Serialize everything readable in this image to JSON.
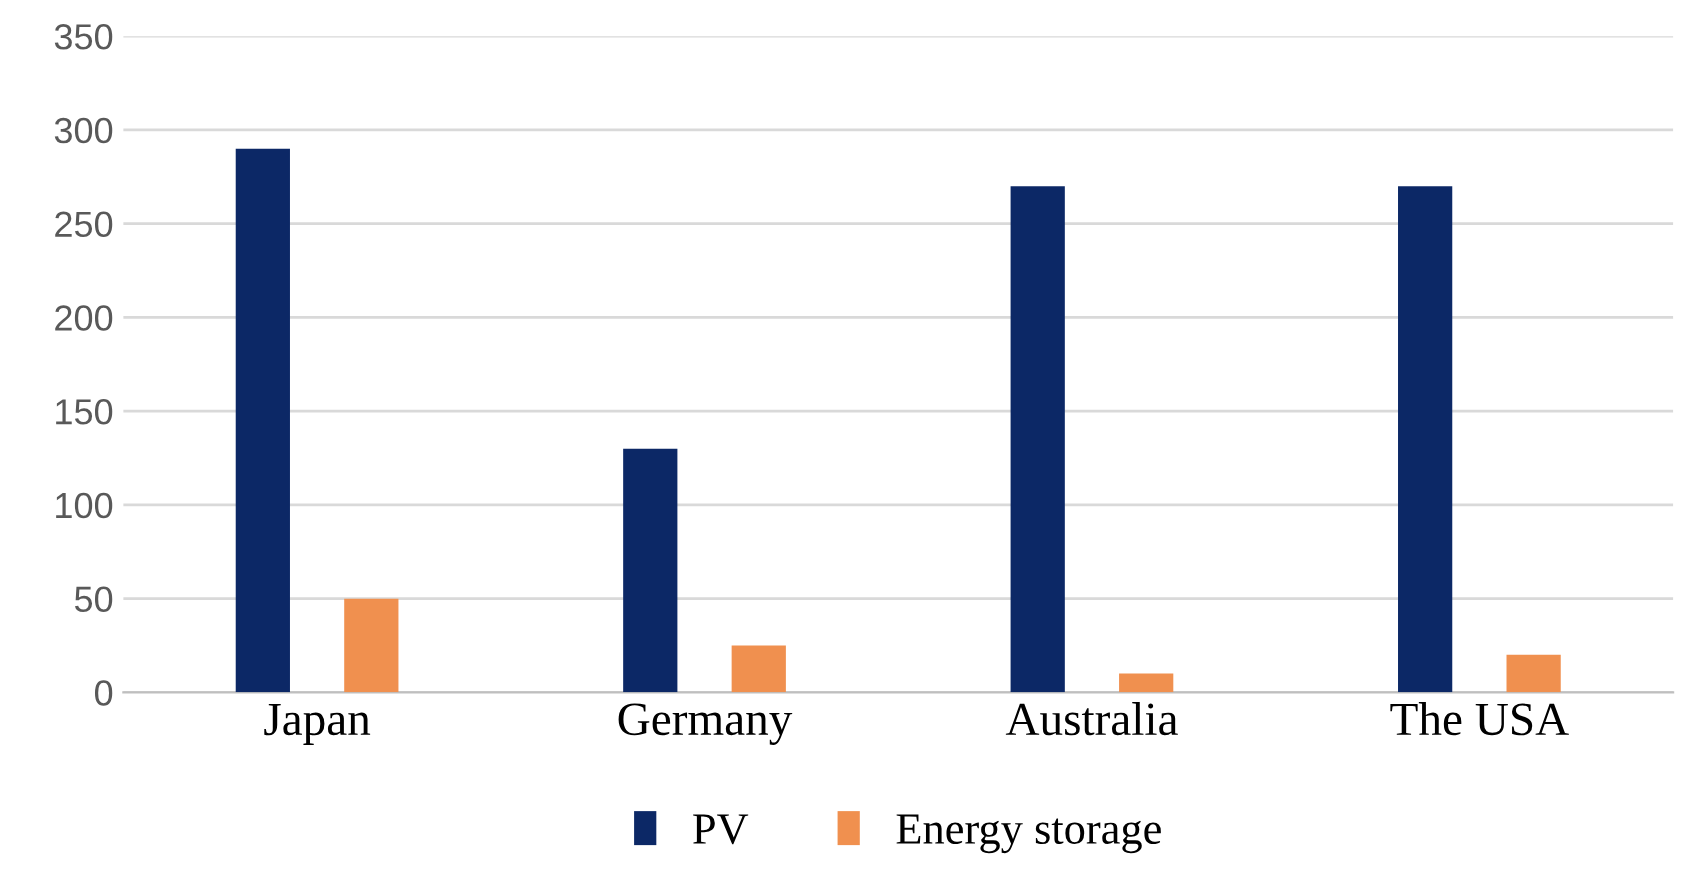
{
  "chart_data": {
    "type": "bar",
    "categories": [
      "Japan",
      "Germany",
      "Australia",
      "The USA"
    ],
    "series": [
      {
        "name": "PV",
        "color": "#0c2866",
        "values": [
          290,
          130,
          270,
          270
        ]
      },
      {
        "name": "Energy storage",
        "color": "#f0904f",
        "values": [
          50,
          25,
          10,
          20
        ]
      }
    ],
    "ylim": [
      0,
      350
    ],
    "yticks": [
      0,
      50,
      100,
      150,
      200,
      250,
      300,
      350
    ],
    "grid": "y",
    "legend": "bottom"
  }
}
